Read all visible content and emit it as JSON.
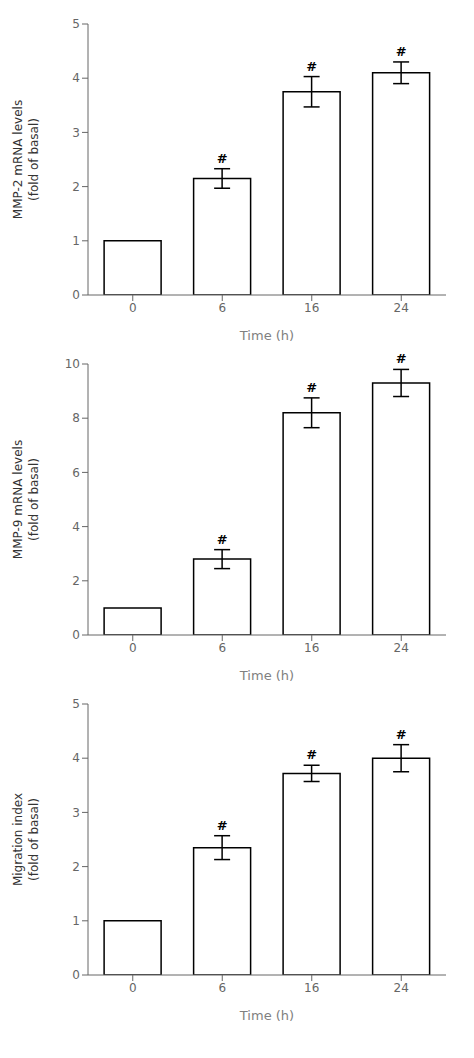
{
  "chart_data": [
    {
      "type": "bar",
      "categories": [
        "0",
        "6",
        "16",
        "24"
      ],
      "values": [
        1.0,
        2.15,
        3.75,
        4.1
      ],
      "errors": [
        0.0,
        0.18,
        0.28,
        0.2
      ],
      "ylabel": [
        "MMP-2 mRNA levels",
        "(fold of basal)"
      ],
      "xlabel": "Time (h)",
      "ylim": [
        0,
        5
      ],
      "yticks": [
        0,
        1,
        2,
        3,
        4,
        5
      ],
      "annotations": [
        {
          "category": "6",
          "text": "#"
        },
        {
          "category": "16",
          "text": "#"
        },
        {
          "category": "24",
          "text": "#"
        }
      ],
      "color": "#ffffff",
      "grid": false
    },
    {
      "type": "bar",
      "categories": [
        "0",
        "6",
        "16",
        "24"
      ],
      "values": [
        1.0,
        2.8,
        8.2,
        9.3
      ],
      "errors": [
        0.0,
        0.35,
        0.55,
        0.5
      ],
      "ylabel": [
        "MMP-9 mRNA levels",
        "(fold of basal)"
      ],
      "xlabel": "Time (h)",
      "ylim": [
        0,
        10
      ],
      "yticks": [
        0,
        2,
        4,
        6,
        8,
        10
      ],
      "annotations": [
        {
          "category": "6",
          "text": "#"
        },
        {
          "category": "16",
          "text": "#"
        },
        {
          "category": "24",
          "text": "#"
        }
      ],
      "color": "#ffffff",
      "grid": false
    },
    {
      "type": "bar",
      "categories": [
        "0",
        "6",
        "16",
        "24"
      ],
      "values": [
        1.0,
        2.35,
        3.72,
        4.0
      ],
      "errors": [
        0.0,
        0.22,
        0.15,
        0.25
      ],
      "ylabel": [
        "Migration index",
        "(fold of basal)"
      ],
      "xlabel": "Time (h)",
      "ylim": [
        0,
        5
      ],
      "yticks": [
        0,
        1,
        2,
        3,
        4,
        5
      ],
      "annotations": [
        {
          "category": "6",
          "text": "#"
        },
        {
          "category": "16",
          "text": "#"
        },
        {
          "category": "24",
          "text": "#"
        }
      ],
      "color": "#ffffff",
      "grid": false
    }
  ]
}
